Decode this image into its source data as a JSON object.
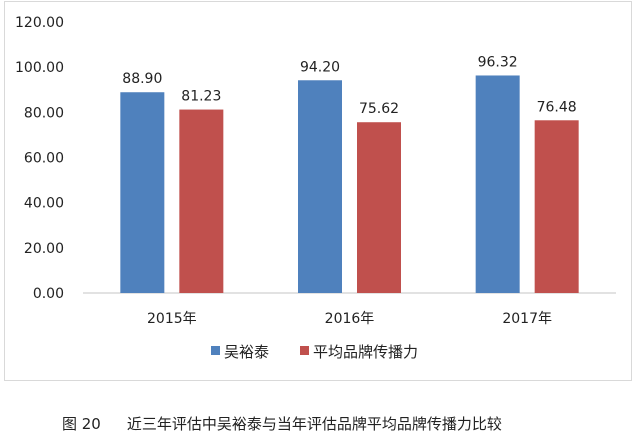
{
  "chart_data": {
    "type": "bar",
    "title": "",
    "categories": [
      "2015年",
      "2016年",
      "2017年"
    ],
    "series": [
      {
        "name": "吴裕泰",
        "values": [
          88.9,
          94.2,
          96.32
        ],
        "labels": [
          "88.90",
          "94.20",
          "96.32"
        ],
        "color": "#4f81bd"
      },
      {
        "name": "平均品牌传播力",
        "values": [
          81.23,
          75.62,
          76.48
        ],
        "labels": [
          "81.23",
          "75.62",
          "76.48"
        ],
        "color": "#c0504d"
      }
    ],
    "ylim": [
      0,
      120
    ],
    "yticks": [
      "0.00",
      "20.00",
      "40.00",
      "60.00",
      "80.00",
      "100.00",
      "120.00"
    ],
    "xlabel": "",
    "ylabel": "",
    "grid": false,
    "legend_position": "bottom"
  },
  "caption": {
    "number": "图 20",
    "text": "近三年评估中吴裕泰与当年评估品牌平均品牌传播力比较"
  }
}
